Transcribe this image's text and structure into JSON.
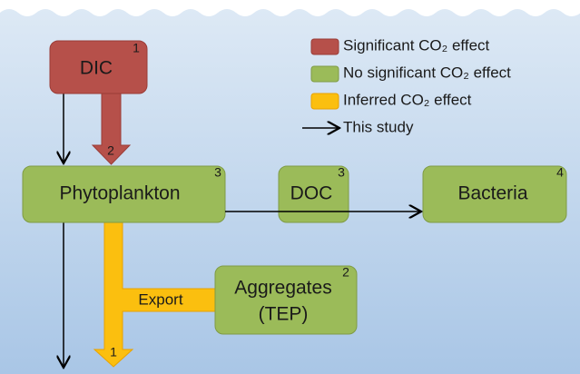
{
  "nodes": [
    {
      "label": "DIC",
      "ref": "1"
    },
    {
      "label": "Phytoplankton",
      "ref": "3"
    },
    {
      "label": "DOC",
      "ref": "3"
    },
    {
      "label": "Bacteria",
      "ref": "4"
    },
    {
      "label": "Aggregates",
      "label_2": "(TEP)",
      "ref": "2"
    }
  ],
  "arrows": [
    {
      "ref": "2"
    },
    {
      "label": "Export",
      "ref": "1"
    }
  ],
  "legend": [
    {
      "label": "Significant CO₂ effect"
    },
    {
      "label": "No significant CO₂ effect"
    },
    {
      "label": "Inferred CO₂ effect"
    },
    {
      "label": "This study"
    }
  ]
}
